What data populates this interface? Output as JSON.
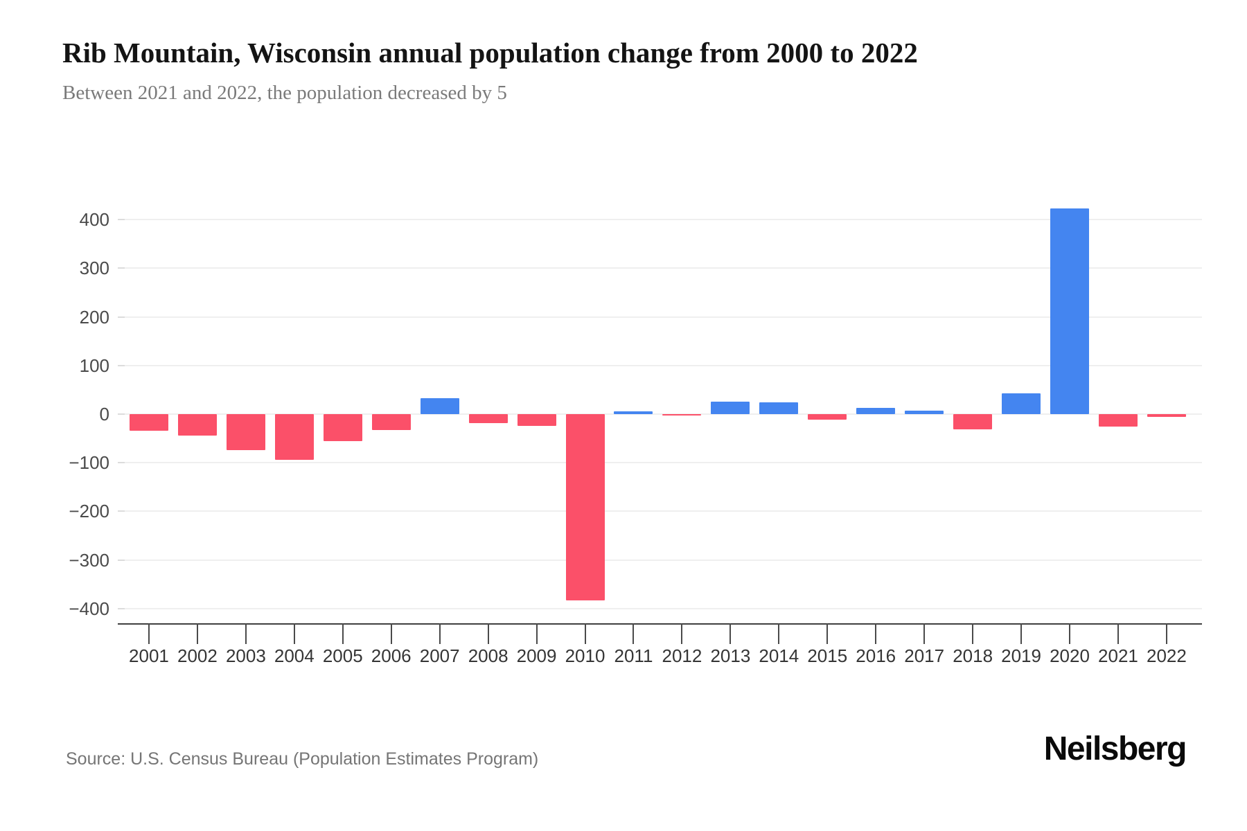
{
  "page": {
    "title": "Rib Mountain, Wisconsin annual population change from 2000 to 2022",
    "subtitle": "Between 2021 and 2022, the population decreased by 5",
    "source": "Source: U.S. Census Bureau (Population Estimates Program)",
    "brand": "Neilsberg"
  },
  "chart_data": {
    "type": "bar",
    "title": "Rib Mountain, Wisconsin annual population change from 2000 to 2022",
    "subtitle": "Between 2021 and 2022, the population decreased by 5",
    "xlabel": "",
    "ylabel": "",
    "categories": [
      "2001",
      "2002",
      "2003",
      "2004",
      "2005",
      "2006",
      "2007",
      "2008",
      "2009",
      "2010",
      "2011",
      "2012",
      "2013",
      "2014",
      "2015",
      "2016",
      "2017",
      "2018",
      "2019",
      "2020",
      "2021",
      "2022"
    ],
    "values": [
      -34,
      -44,
      -74,
      -94,
      -55,
      -33,
      33,
      -19,
      -24,
      -383,
      5,
      -2,
      25,
      24,
      -12,
      13,
      7,
      -32,
      43,
      423,
      -26,
      -5
    ],
    "yticks": [
      400,
      300,
      200,
      100,
      0,
      -100,
      -200,
      -300,
      -400
    ],
    "ylim": [
      -430,
      455
    ],
    "grid": "horizontal",
    "legend": "none",
    "colors": {
      "positive": "#4485F0",
      "negative": "#FB5069",
      "gridline": "#efefef",
      "axis": "#3f3f3f"
    }
  }
}
